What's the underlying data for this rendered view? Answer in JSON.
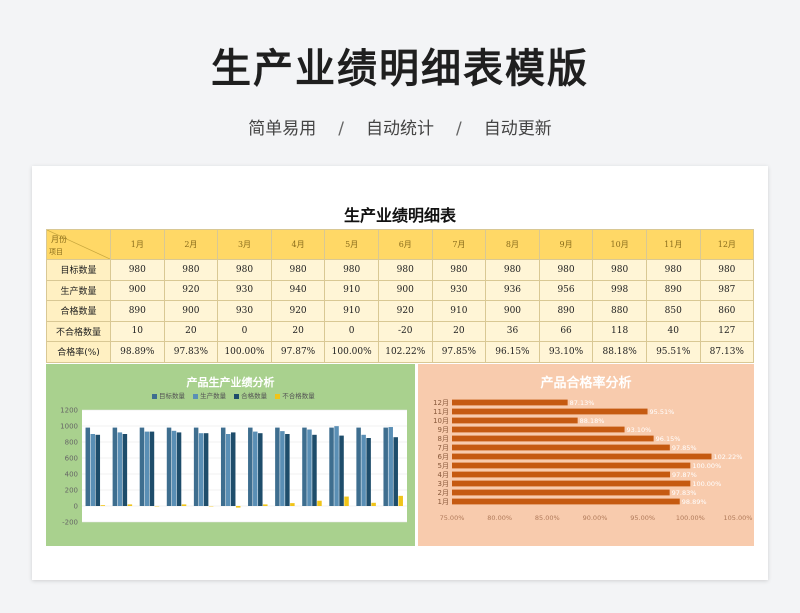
{
  "header": {
    "title": "生产业绩明细表模版",
    "features": [
      "简单易用",
      "自动统计",
      "自动更新"
    ],
    "separator": "/"
  },
  "sheet": {
    "title": "生产业绩明细表",
    "corner_top": "月份",
    "corner_bottom": "项目",
    "months": [
      "1月",
      "2月",
      "3月",
      "4月",
      "5月",
      "6月",
      "7月",
      "8月",
      "9月",
      "10月",
      "11月",
      "12月"
    ],
    "rows": [
      {
        "label": "目标数量",
        "values": [
          "980",
          "980",
          "980",
          "980",
          "980",
          "980",
          "980",
          "980",
          "980",
          "980",
          "980",
          "980"
        ]
      },
      {
        "label": "生产数量",
        "values": [
          "900",
          "920",
          "930",
          "940",
          "910",
          "900",
          "930",
          "936",
          "956",
          "998",
          "890",
          "987"
        ]
      },
      {
        "label": "合格数量",
        "values": [
          "890",
          "900",
          "930",
          "920",
          "910",
          "920",
          "910",
          "900",
          "890",
          "880",
          "850",
          "860"
        ]
      },
      {
        "label": "不合格数量",
        "values": [
          "10",
          "20",
          "0",
          "20",
          "0",
          "-20",
          "20",
          "36",
          "66",
          "118",
          "40",
          "127"
        ]
      },
      {
        "label": "合格率(%)",
        "values": [
          "98.89%",
          "97.83%",
          "100.00%",
          "97.87%",
          "100.00%",
          "102.22%",
          "97.85%",
          "96.15%",
          "93.10%",
          "88.18%",
          "95.51%",
          "87.13%"
        ]
      }
    ]
  },
  "colors": {
    "target": "#3e6e8f",
    "production": "#5a8fb5",
    "qualified": "#1e4d6b",
    "unqualified": "#f0c419",
    "rate_bar": "#c55a11",
    "left_panel": "#a9d18e",
    "right_panel": "#f8cbad",
    "table_head": "#ffd866",
    "table_body": "#fff5d6"
  },
  "chart_data": [
    {
      "type": "bar",
      "title": "产品生产业绩分析",
      "categories": [
        "1月",
        "2月",
        "3月",
        "4月",
        "5月",
        "6月",
        "7月",
        "8月",
        "9月",
        "10月",
        "11月",
        "12月"
      ],
      "series": [
        {
          "name": "目标数量",
          "values": [
            980,
            980,
            980,
            980,
            980,
            980,
            980,
            980,
            980,
            980,
            980,
            980
          ]
        },
        {
          "name": "生产数量",
          "values": [
            900,
            920,
            930,
            940,
            910,
            900,
            930,
            936,
            956,
            998,
            890,
            987
          ]
        },
        {
          "name": "合格数量",
          "values": [
            890,
            900,
            930,
            920,
            910,
            920,
            910,
            900,
            890,
            880,
            850,
            860
          ]
        },
        {
          "name": "不合格数量",
          "values": [
            10,
            20,
            0,
            20,
            0,
            -20,
            20,
            36,
            66,
            118,
            40,
            127
          ]
        }
      ],
      "yticks": [
        "1200",
        "1000",
        "800",
        "600",
        "400",
        "200",
        "0",
        "-200"
      ],
      "ylim": [
        -200,
        1200
      ],
      "legend_position": "top",
      "grid": true
    },
    {
      "type": "bar",
      "orientation": "horizontal",
      "title": "产品合格率分析",
      "categories": [
        "1月",
        "2月",
        "3月",
        "4月",
        "5月",
        "6月",
        "7月",
        "8月",
        "9月",
        "10月",
        "11月",
        "12月"
      ],
      "values": [
        98.89,
        97.83,
        100.0,
        97.87,
        100.0,
        102.22,
        97.85,
        96.15,
        93.1,
        88.18,
        95.51,
        87.13
      ],
      "labels": [
        "98.89%",
        "97.83%",
        "100.00%",
        "97.87%",
        "100.00%",
        "102.22%",
        "97.85%",
        "96.15%",
        "93.10%",
        "88.18%",
        "95.51%",
        "87.13%"
      ],
      "xticks": [
        "75.00%",
        "80.00%",
        "85.00%",
        "90.00%",
        "95.00%",
        "100.00%",
        "105.00%"
      ],
      "xlim": [
        75,
        105
      ],
      "grid": false
    }
  ]
}
